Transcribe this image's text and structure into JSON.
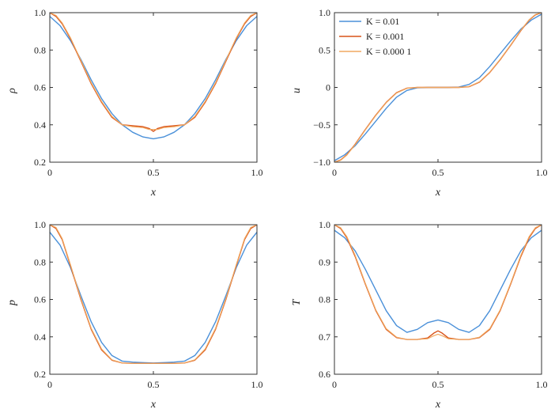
{
  "legend": {
    "placement": "top-left of u panel",
    "entries": [
      {
        "text": "K = 0.01",
        "color": "#4a90d9"
      },
      {
        "text": "K = 0.001",
        "color": "#d95319"
      },
      {
        "text": "K = 0.000 1",
        "color": "#f0a860"
      }
    ]
  },
  "colors": {
    "K_0.01": "#4a90d9",
    "K_0.001": "#d95319",
    "K_0.0001": "#f0a860"
  },
  "chart_data": [
    {
      "type": "line",
      "ylabel": "ρ",
      "xlabel": "x",
      "xlim": [
        0,
        1
      ],
      "ylim": [
        0.2,
        1.0
      ],
      "xticks": [
        "0",
        "0.5",
        "1.0"
      ],
      "yticks": [
        "0.2",
        "0.4",
        "0.6",
        "0.8",
        "1.0"
      ],
      "ytick_values": [
        0.2,
        0.4,
        0.6,
        0.8,
        1.0
      ],
      "series": [
        {
          "name": "K = 0.01",
          "x": [
            0,
            0.05,
            0.1,
            0.15,
            0.2,
            0.25,
            0.3,
            0.35,
            0.4,
            0.45,
            0.5,
            0.55,
            0.6,
            0.65,
            0.7,
            0.75,
            0.8,
            0.85,
            0.9,
            0.95,
            1.0
          ],
          "y": [
            0.98,
            0.93,
            0.85,
            0.75,
            0.64,
            0.54,
            0.46,
            0.4,
            0.36,
            0.335,
            0.325,
            0.335,
            0.36,
            0.4,
            0.46,
            0.54,
            0.64,
            0.75,
            0.85,
            0.93,
            0.98
          ]
        },
        {
          "name": "K = 0.001",
          "x": [
            0,
            0.03,
            0.06,
            0.1,
            0.15,
            0.2,
            0.25,
            0.3,
            0.35,
            0.4,
            0.45,
            0.48,
            0.5,
            0.52,
            0.55,
            0.6,
            0.65,
            0.7,
            0.75,
            0.8,
            0.85,
            0.9,
            0.94,
            0.97,
            1.0
          ],
          "y": [
            1.0,
            0.98,
            0.94,
            0.86,
            0.74,
            0.62,
            0.52,
            0.44,
            0.4,
            0.395,
            0.39,
            0.38,
            0.365,
            0.38,
            0.39,
            0.395,
            0.4,
            0.44,
            0.52,
            0.62,
            0.74,
            0.86,
            0.94,
            0.98,
            1.0
          ]
        },
        {
          "name": "K = 0.000 1",
          "x": [
            0,
            0.03,
            0.06,
            0.1,
            0.15,
            0.2,
            0.25,
            0.3,
            0.35,
            0.4,
            0.45,
            0.48,
            0.5,
            0.52,
            0.55,
            0.6,
            0.65,
            0.7,
            0.75,
            0.8,
            0.85,
            0.9,
            0.94,
            0.97,
            1.0
          ],
          "y": [
            1.0,
            0.985,
            0.945,
            0.865,
            0.745,
            0.625,
            0.525,
            0.445,
            0.4,
            0.39,
            0.385,
            0.375,
            0.375,
            0.375,
            0.385,
            0.39,
            0.4,
            0.445,
            0.525,
            0.625,
            0.745,
            0.865,
            0.945,
            0.985,
            1.0
          ]
        }
      ]
    },
    {
      "type": "line",
      "ylabel": "u",
      "xlabel": "x",
      "xlim": [
        0,
        1
      ],
      "ylim": [
        -1.0,
        1.0
      ],
      "xticks": [
        "0",
        "0.5",
        "1.0"
      ],
      "yticks": [
        "−1.0",
        "−0.5",
        "0",
        "0.5",
        "1.0"
      ],
      "ytick_values": [
        -1.0,
        -0.5,
        0,
        0.5,
        1.0
      ],
      "series": [
        {
          "name": "K = 0.01",
          "x": [
            0,
            0.05,
            0.1,
            0.15,
            0.2,
            0.25,
            0.3,
            0.35,
            0.4,
            0.45,
            0.5,
            0.55,
            0.6,
            0.65,
            0.7,
            0.75,
            0.8,
            0.85,
            0.9,
            0.95,
            1.0
          ],
          "y": [
            -0.98,
            -0.9,
            -0.78,
            -0.62,
            -0.45,
            -0.28,
            -0.13,
            -0.04,
            -0.005,
            0.0,
            0.0,
            0.0,
            0.005,
            0.04,
            0.13,
            0.28,
            0.45,
            0.62,
            0.78,
            0.9,
            0.98
          ]
        },
        {
          "name": "K = 0.001",
          "x": [
            0,
            0.03,
            0.06,
            0.1,
            0.15,
            0.2,
            0.25,
            0.3,
            0.35,
            0.4,
            0.45,
            0.5,
            0.55,
            0.6,
            0.65,
            0.7,
            0.75,
            0.8,
            0.85,
            0.9,
            0.94,
            0.97,
            1.0
          ],
          "y": [
            -1.0,
            -0.97,
            -0.9,
            -0.76,
            -0.56,
            -0.37,
            -0.2,
            -0.07,
            -0.01,
            0.0,
            0.0,
            0.0,
            0.0,
            0.0,
            0.01,
            0.07,
            0.2,
            0.37,
            0.56,
            0.76,
            0.9,
            0.97,
            1.0
          ]
        },
        {
          "name": "K = 0.000 1",
          "x": [
            0,
            0.03,
            0.06,
            0.1,
            0.15,
            0.2,
            0.25,
            0.3,
            0.35,
            0.4,
            0.45,
            0.5,
            0.55,
            0.6,
            0.65,
            0.7,
            0.75,
            0.8,
            0.85,
            0.9,
            0.94,
            0.97,
            1.0
          ],
          "y": [
            -1.0,
            -0.975,
            -0.905,
            -0.765,
            -0.565,
            -0.375,
            -0.205,
            -0.075,
            -0.012,
            0.0,
            0.0,
            0.0,
            0.0,
            0.0,
            0.012,
            0.075,
            0.205,
            0.375,
            0.565,
            0.765,
            0.905,
            0.975,
            1.0
          ]
        }
      ]
    },
    {
      "type": "line",
      "ylabel": "p",
      "xlabel": "x",
      "xlim": [
        0,
        1
      ],
      "ylim": [
        0.2,
        1.0
      ],
      "xticks": [
        "0",
        "0.5",
        "1.0"
      ],
      "yticks": [
        "0.2",
        "0.4",
        "0.6",
        "0.8",
        "1.0"
      ],
      "ytick_values": [
        0.2,
        0.4,
        0.6,
        0.8,
        1.0
      ],
      "series": [
        {
          "name": "K = 0.01",
          "x": [
            0,
            0.05,
            0.1,
            0.15,
            0.2,
            0.25,
            0.3,
            0.35,
            0.4,
            0.45,
            0.5,
            0.55,
            0.6,
            0.65,
            0.7,
            0.75,
            0.8,
            0.85,
            0.9,
            0.95,
            1.0
          ],
          "y": [
            0.96,
            0.89,
            0.77,
            0.62,
            0.48,
            0.37,
            0.3,
            0.27,
            0.265,
            0.262,
            0.26,
            0.262,
            0.265,
            0.27,
            0.3,
            0.37,
            0.48,
            0.62,
            0.77,
            0.89,
            0.96
          ]
        },
        {
          "name": "K = 0.001",
          "x": [
            0,
            0.03,
            0.06,
            0.1,
            0.15,
            0.2,
            0.25,
            0.3,
            0.35,
            0.4,
            0.45,
            0.5,
            0.55,
            0.6,
            0.65,
            0.7,
            0.75,
            0.8,
            0.85,
            0.9,
            0.94,
            0.97,
            1.0
          ],
          "y": [
            1.0,
            0.98,
            0.92,
            0.78,
            0.6,
            0.44,
            0.33,
            0.275,
            0.26,
            0.258,
            0.258,
            0.258,
            0.258,
            0.258,
            0.26,
            0.275,
            0.33,
            0.44,
            0.6,
            0.78,
            0.92,
            0.98,
            1.0
          ]
        },
        {
          "name": "K = 0.000 1",
          "x": [
            0,
            0.03,
            0.06,
            0.1,
            0.15,
            0.2,
            0.25,
            0.3,
            0.35,
            0.4,
            0.45,
            0.5,
            0.55,
            0.6,
            0.65,
            0.7,
            0.75,
            0.8,
            0.85,
            0.9,
            0.94,
            0.97,
            1.0
          ],
          "y": [
            1.0,
            0.985,
            0.925,
            0.785,
            0.605,
            0.445,
            0.335,
            0.277,
            0.26,
            0.258,
            0.258,
            0.258,
            0.258,
            0.258,
            0.26,
            0.277,
            0.335,
            0.445,
            0.605,
            0.785,
            0.925,
            0.985,
            1.0
          ]
        }
      ]
    },
    {
      "type": "line",
      "ylabel": "T",
      "xlabel": "x",
      "xlim": [
        0,
        1
      ],
      "ylim": [
        0.6,
        1.0
      ],
      "xticks": [
        "0",
        "0.5",
        "1.0"
      ],
      "yticks": [
        "0.6",
        "0.7",
        "0.8",
        "0.9",
        "1.0"
      ],
      "ytick_values": [
        0.6,
        0.7,
        0.8,
        0.9,
        1.0
      ],
      "series": [
        {
          "name": "K = 0.01",
          "x": [
            0,
            0.05,
            0.1,
            0.15,
            0.2,
            0.25,
            0.3,
            0.35,
            0.4,
            0.45,
            0.5,
            0.55,
            0.6,
            0.65,
            0.7,
            0.75,
            0.8,
            0.85,
            0.9,
            0.95,
            1.0
          ],
          "y": [
            0.985,
            0.965,
            0.93,
            0.88,
            0.825,
            0.77,
            0.73,
            0.712,
            0.72,
            0.738,
            0.745,
            0.738,
            0.72,
            0.712,
            0.73,
            0.77,
            0.825,
            0.88,
            0.93,
            0.965,
            0.985
          ]
        },
        {
          "name": "K = 0.001",
          "x": [
            0,
            0.03,
            0.06,
            0.1,
            0.15,
            0.2,
            0.25,
            0.3,
            0.35,
            0.4,
            0.45,
            0.48,
            0.5,
            0.52,
            0.55,
            0.6,
            0.65,
            0.7,
            0.75,
            0.8,
            0.85,
            0.9,
            0.94,
            0.97,
            1.0
          ],
          "y": [
            1.0,
            0.99,
            0.965,
            0.915,
            0.84,
            0.77,
            0.72,
            0.698,
            0.693,
            0.693,
            0.697,
            0.71,
            0.716,
            0.71,
            0.697,
            0.693,
            0.693,
            0.698,
            0.72,
            0.77,
            0.84,
            0.915,
            0.965,
            0.99,
            1.0
          ]
        },
        {
          "name": "K = 0.000 1",
          "x": [
            0,
            0.03,
            0.06,
            0.1,
            0.15,
            0.2,
            0.25,
            0.3,
            0.35,
            0.4,
            0.45,
            0.48,
            0.5,
            0.52,
            0.55,
            0.6,
            0.65,
            0.7,
            0.75,
            0.8,
            0.85,
            0.9,
            0.94,
            0.97,
            1.0
          ],
          "y": [
            1.0,
            0.992,
            0.968,
            0.918,
            0.842,
            0.772,
            0.722,
            0.699,
            0.693,
            0.693,
            0.695,
            0.703,
            0.707,
            0.703,
            0.695,
            0.693,
            0.693,
            0.699,
            0.722,
            0.772,
            0.842,
            0.918,
            0.968,
            0.992,
            1.0
          ]
        }
      ]
    }
  ]
}
